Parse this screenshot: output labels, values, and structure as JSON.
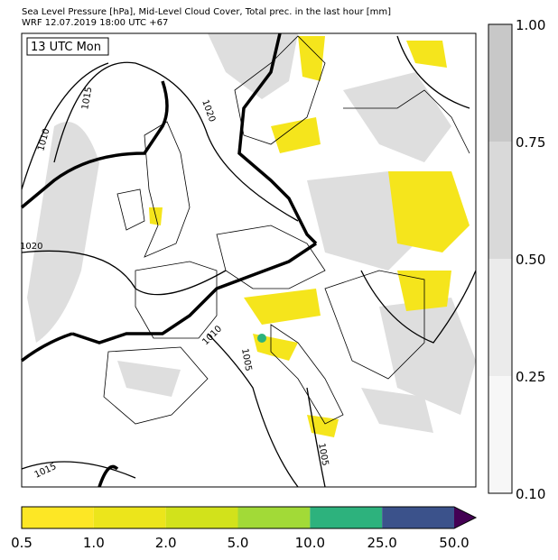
{
  "header": {
    "line1": "Sea Level Pressure [hPa], Mid-Level Cloud Cover, Total prec. in the last hour [mm]",
    "line2": "WRF 12.07.2019 18:00 UTC +67"
  },
  "time_label": "13 UTC Mon",
  "isobar_labels": [
    "1015",
    "1020",
    "1010",
    "1020",
    "1010",
    "1005",
    "1005",
    "1015"
  ],
  "cloud_colorbar": {
    "labels": [
      "1.00",
      "0.75",
      "0.50",
      "0.25",
      "0.10"
    ],
    "colors": [
      "#c8c8c8",
      "#d9d9d9",
      "#ebebeb",
      "#f7f7f7"
    ]
  },
  "precip_colorbar": {
    "labels": [
      "0.5",
      "1.0",
      "2.0",
      "5.0",
      "10.0",
      "25.0",
      "50.0"
    ],
    "colors": [
      "#fde725",
      "#ece51b",
      "#d2e21b",
      "#a2da37",
      "#2db27d",
      "#3b528b"
    ],
    "extend_color": "#440154"
  }
}
